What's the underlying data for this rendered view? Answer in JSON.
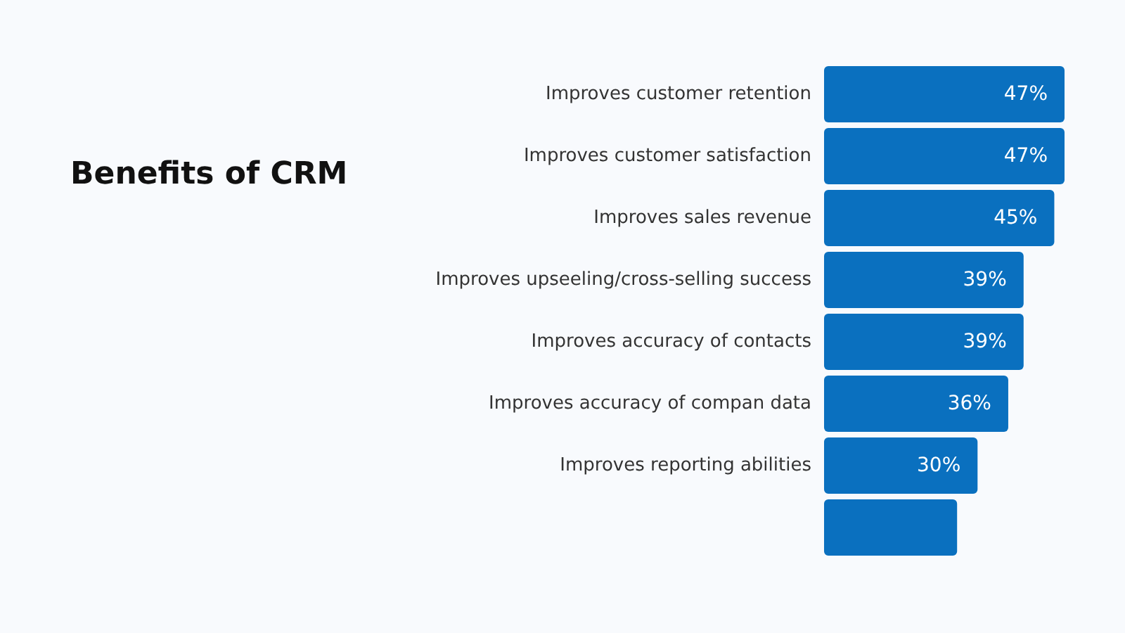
{
  "chart_data": {
    "type": "bar",
    "orientation": "horizontal",
    "title": "Benefits of CRM",
    "categories": [
      "Improves customer retention",
      "Improves customer satisfaction",
      "Improves sales revenue",
      "Improves upseeling/cross-selling success",
      "Improves accuracy of contacts",
      "Improves accuracy of compan data",
      "Improves reporting abilities",
      null
    ],
    "values": [
      47,
      47,
      45,
      39,
      39,
      36,
      30,
      26
    ],
    "value_labels": [
      "47%",
      "47%",
      "45%",
      "39%",
      "39%",
      "36%",
      "30%",
      null
    ],
    "color": "#0a70bf",
    "xlim": [
      0,
      47
    ],
    "tick_labels": "y",
    "grid": false
  }
}
